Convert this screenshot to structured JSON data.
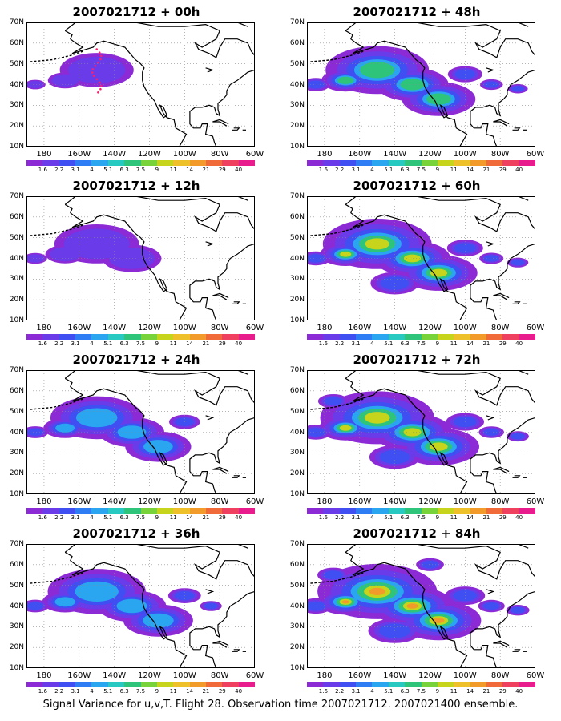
{
  "caption": "Signal Variance for u,v,T. Flight 28. Observation time 2007021712. 2007021400 ensemble.",
  "panels": [
    {
      "title": "2007021712 + 00h",
      "level": 0.15,
      "focus": "track"
    },
    {
      "title": "2007021712 + 12h",
      "level": 0.35
    },
    {
      "title": "2007021712 + 24h",
      "level": 0.5
    },
    {
      "title": "2007021712 + 36h",
      "level": 0.6
    },
    {
      "title": "2007021712 + 48h",
      "level": 0.7
    },
    {
      "title": "2007021712 + 60h",
      "level": 0.8
    },
    {
      "title": "2007021712 + 72h",
      "level": 0.9
    },
    {
      "title": "2007021712 + 84h",
      "level": 1.0
    }
  ],
  "lat_labels": [
    "70N",
    "60N",
    "50N",
    "40N",
    "30N",
    "20N",
    "10N"
  ],
  "lon_labels": [
    "180",
    "160W",
    "140W",
    "120W",
    "100W",
    "80W",
    "60W"
  ],
  "colorbar": {
    "labels": [
      "1.6",
      "2.2",
      "3.1",
      "4",
      "5.1",
      "6.3",
      "7.5",
      "9",
      "11",
      "14",
      "21",
      "29",
      "40"
    ],
    "colors": [
      "#8c2ad6",
      "#6a3be8",
      "#3f4ff2",
      "#2f7df5",
      "#2aa6f0",
      "#27c9c0",
      "#2ec57a",
      "#78d23a",
      "#c6d41c",
      "#eec02a",
      "#f29a2a",
      "#f06a3a",
      "#f04060",
      "#e81c8c"
    ]
  }
}
